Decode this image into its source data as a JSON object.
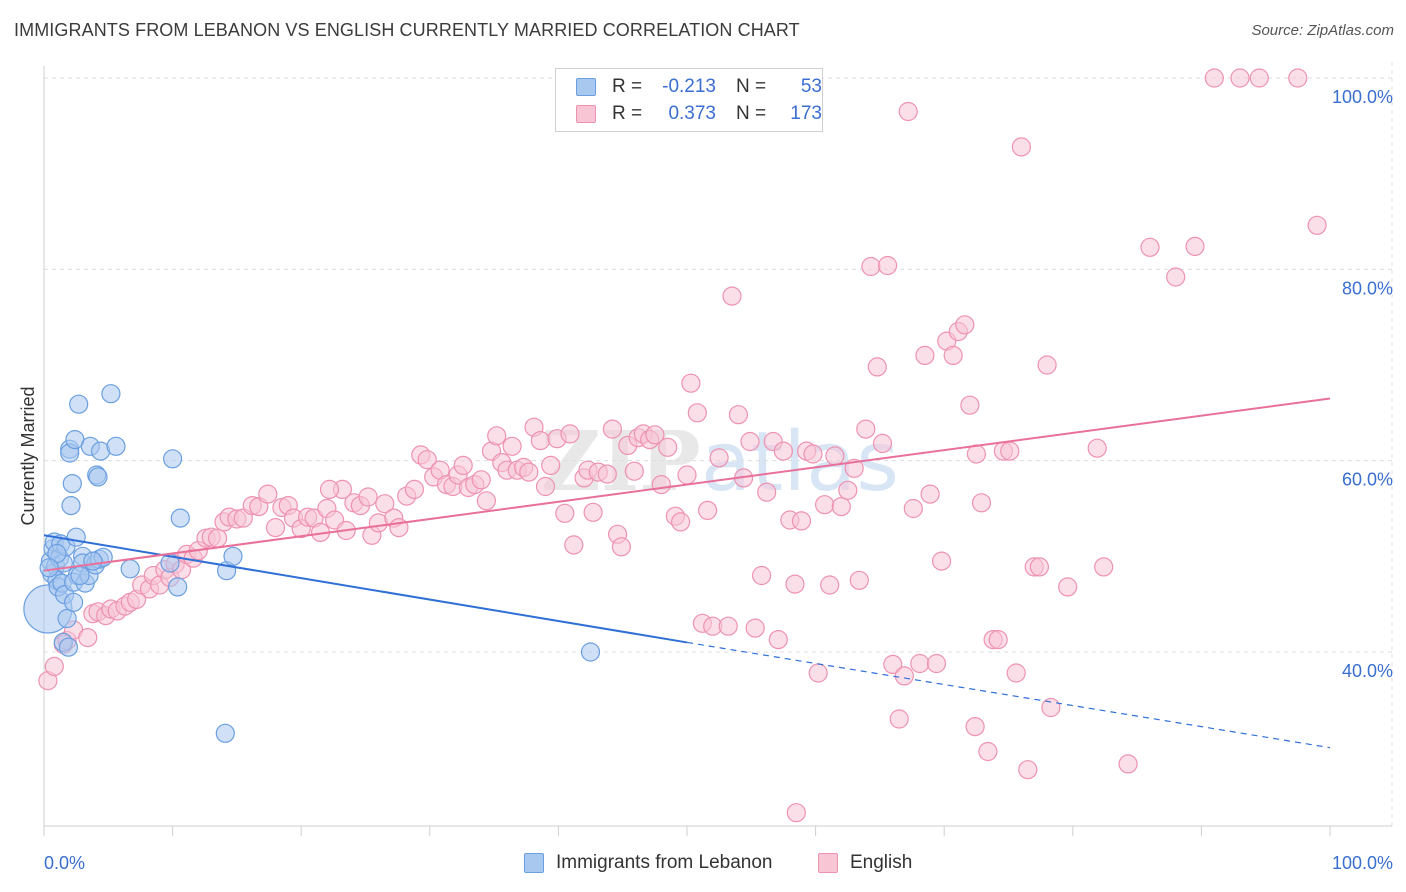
{
  "header": {
    "title": "IMMIGRANTS FROM LEBANON VS ENGLISH CURRENTLY MARRIED CORRELATION CHART",
    "source": "Source: ZipAtlas.com"
  },
  "watermark": "ZIPatlas",
  "legend_top": {
    "rows": [
      {
        "r_label": "R =",
        "r_value": "-0.213",
        "n_label": "N =",
        "n_value": "53",
        "color": "#7aaae6"
      },
      {
        "r_label": "R =",
        "r_value": "0.373",
        "n_label": "N =",
        "n_value": "173",
        "color": "#ef8fae"
      }
    ]
  },
  "legend_bottom": {
    "items": [
      {
        "label": "Immigrants from Lebanon",
        "color": "#7aaae6"
      },
      {
        "label": "English",
        "color": "#ef8fae"
      }
    ]
  },
  "colors": {
    "blue_fill": "#a9c8f0",
    "blue_stroke": "#6b9fe0",
    "blue_line": "#2f6fd6",
    "pink_fill": "#f8c5d5",
    "pink_stroke": "#ee92b1",
    "pink_line": "#e8709a",
    "grid": "#dddddd",
    "tick_label": "#3a6fd0"
  },
  "chart_data": {
    "type": "scatter",
    "title": "IMMIGRANTS FROM LEBANON VS ENGLISH CURRENTLY MARRIED CORRELATION CHART",
    "xlabel": "",
    "ylabel": "Currently Married",
    "xlim": [
      0,
      100
    ],
    "ylim": [
      20,
      102
    ],
    "x_tick_labels": [
      "0.0%",
      "100.0%"
    ],
    "y_ticks": [
      40,
      60,
      80,
      100
    ],
    "y_tick_labels": [
      "40.0%",
      "60.0%",
      "80.0%",
      "100.0%"
    ],
    "grid": true,
    "legend_position": "top-center and bottom",
    "series": [
      {
        "name": "Immigrants from Lebanon",
        "r": -0.213,
        "n": 53,
        "trend": {
          "x0": 0,
          "y0": 52.2,
          "x1": 50,
          "y1": 41.0,
          "dashed_to_x": 100,
          "dashed_to_y": 30.0
        },
        "points": [
          [
            0.3,
            44.5,
            3
          ],
          [
            0.5,
            49.5,
            1
          ],
          [
            0.6,
            48.2,
            1
          ],
          [
            0.7,
            50.8,
            1
          ],
          [
            0.8,
            51.5,
            1
          ],
          [
            0.9,
            49.0,
            1
          ],
          [
            1.0,
            47.5,
            1
          ],
          [
            1.1,
            46.8,
            1
          ],
          [
            1.2,
            49.8,
            1
          ],
          [
            1.3,
            51.3,
            1
          ],
          [
            1.4,
            47.2,
            1
          ],
          [
            1.5,
            49.3,
            1
          ],
          [
            1.6,
            46.0,
            1
          ],
          [
            1.7,
            51.0,
            1
          ],
          [
            1.8,
            43.5,
            1
          ],
          [
            1.5,
            41.0,
            1
          ],
          [
            1.9,
            40.5,
            1
          ],
          [
            2.0,
            61.2,
            1
          ],
          [
            2.0,
            60.8,
            1
          ],
          [
            2.1,
            55.3,
            1
          ],
          [
            2.2,
            57.6,
            1
          ],
          [
            2.3,
            45.2,
            1
          ],
          [
            2.4,
            62.2,
            1
          ],
          [
            2.5,
            52.0,
            1
          ],
          [
            2.6,
            48.0,
            1
          ],
          [
            2.3,
            47.3,
            1
          ],
          [
            2.7,
            65.9,
            1
          ],
          [
            3.0,
            50.0,
            1
          ],
          [
            3.2,
            47.2,
            1
          ],
          [
            3.0,
            49.3,
            1
          ],
          [
            3.5,
            48.0,
            1
          ],
          [
            3.6,
            61.5,
            1
          ],
          [
            4.0,
            49.1,
            1
          ],
          [
            4.1,
            58.5,
            1
          ],
          [
            4.2,
            58.3,
            1
          ],
          [
            4.4,
            61.0,
            1
          ],
          [
            4.3,
            49.7,
            1
          ],
          [
            4.6,
            49.9,
            1
          ],
          [
            5.2,
            67.0,
            1
          ],
          [
            5.6,
            61.5,
            1
          ],
          [
            6.7,
            48.7,
            1
          ],
          [
            9.8,
            49.3,
            1
          ],
          [
            10.0,
            60.2,
            1
          ],
          [
            10.4,
            46.8,
            1
          ],
          [
            10.6,
            54.0,
            1
          ],
          [
            14.2,
            48.5,
            1
          ],
          [
            14.7,
            50.0,
            1
          ],
          [
            14.1,
            31.5,
            1
          ],
          [
            42.5,
            40.0,
            1
          ],
          [
            1.0,
            50.3,
            1
          ],
          [
            0.4,
            48.8,
            1
          ],
          [
            2.8,
            48.0,
            1
          ],
          [
            3.8,
            49.5,
            1
          ]
        ]
      },
      {
        "name": "English",
        "r": 0.373,
        "n": 173,
        "trend": {
          "x0": 0,
          "y0": 48.5,
          "x1": 100,
          "y1": 66.5
        },
        "points": [
          [
            0.3,
            37.0,
            1
          ],
          [
            0.8,
            38.5,
            1
          ],
          [
            1.5,
            40.8,
            1
          ],
          [
            1.8,
            41.2,
            1
          ],
          [
            2.3,
            42.3,
            1
          ],
          [
            3.4,
            41.5,
            1
          ],
          [
            3.8,
            44.0,
            1
          ],
          [
            4.2,
            44.2,
            1
          ],
          [
            4.8,
            43.8,
            1
          ],
          [
            5.2,
            44.5,
            1
          ],
          [
            5.7,
            44.3,
            1
          ],
          [
            6.3,
            44.8,
            1
          ],
          [
            6.7,
            45.2,
            1
          ],
          [
            7.2,
            45.5,
            1
          ],
          [
            7.6,
            47.0,
            1
          ],
          [
            8.2,
            46.6,
            1
          ],
          [
            8.5,
            48.0,
            1
          ],
          [
            9.0,
            47.0,
            1
          ],
          [
            9.4,
            48.6,
            1
          ],
          [
            9.8,
            47.8,
            1
          ],
          [
            10.2,
            49.2,
            1
          ],
          [
            10.7,
            48.6,
            1
          ],
          [
            11.1,
            50.2,
            1
          ],
          [
            11.6,
            49.8,
            1
          ],
          [
            12.0,
            50.6,
            1
          ],
          [
            12.6,
            51.9,
            1
          ],
          [
            13.0,
            52.0,
            1
          ],
          [
            13.5,
            51.9,
            1
          ],
          [
            14.0,
            53.6,
            1
          ],
          [
            14.4,
            54.1,
            1
          ],
          [
            15.0,
            53.9,
            1
          ],
          [
            15.5,
            54.0,
            1
          ],
          [
            16.2,
            55.3,
            1
          ],
          [
            16.7,
            55.2,
            1
          ],
          [
            17.4,
            56.5,
            1
          ],
          [
            18.0,
            53.0,
            1
          ],
          [
            18.5,
            55.1,
            1
          ],
          [
            19.0,
            55.3,
            1
          ],
          [
            19.4,
            54.0,
            1
          ],
          [
            20.0,
            52.9,
            1
          ],
          [
            20.5,
            54.1,
            1
          ],
          [
            21.0,
            54.0,
            1
          ],
          [
            21.5,
            52.5,
            1
          ],
          [
            22.0,
            55.0,
            1
          ],
          [
            22.6,
            53.8,
            1
          ],
          [
            23.2,
            57.0,
            1
          ],
          [
            23.5,
            52.7,
            1
          ],
          [
            24.1,
            55.6,
            1
          ],
          [
            24.6,
            55.3,
            1
          ],
          [
            25.2,
            56.2,
            1
          ],
          [
            25.5,
            52.2,
            1
          ],
          [
            26.0,
            53.5,
            1
          ],
          [
            26.5,
            55.5,
            1
          ],
          [
            27.2,
            54.0,
            1
          ],
          [
            27.6,
            53.0,
            1
          ],
          [
            28.2,
            56.3,
            1
          ],
          [
            28.8,
            57.0,
            1
          ],
          [
            29.3,
            60.6,
            1
          ],
          [
            29.8,
            60.1,
            1
          ],
          [
            30.3,
            58.3,
            1
          ],
          [
            30.8,
            59.0,
            1
          ],
          [
            31.3,
            57.5,
            1
          ],
          [
            31.8,
            57.3,
            1
          ],
          [
            32.2,
            58.5,
            1
          ],
          [
            32.6,
            59.5,
            1
          ],
          [
            33.0,
            57.2,
            1
          ],
          [
            33.5,
            57.5,
            1
          ],
          [
            34.0,
            58.0,
            1
          ],
          [
            34.4,
            55.8,
            1
          ],
          [
            34.8,
            61.0,
            1
          ],
          [
            35.2,
            62.6,
            1
          ],
          [
            35.6,
            59.8,
            1
          ],
          [
            36.0,
            59.0,
            1
          ],
          [
            36.4,
            61.5,
            1
          ],
          [
            36.8,
            59.0,
            1
          ],
          [
            37.3,
            59.3,
            1
          ],
          [
            37.7,
            58.8,
            1
          ],
          [
            38.1,
            63.5,
            1
          ],
          [
            38.6,
            62.1,
            1
          ],
          [
            39.0,
            57.3,
            1
          ],
          [
            39.4,
            59.5,
            1
          ],
          [
            39.9,
            62.3,
            1
          ],
          [
            40.5,
            54.5,
            1
          ],
          [
            40.9,
            62.8,
            1
          ],
          [
            41.2,
            51.2,
            1
          ],
          [
            42.0,
            58.2,
            1
          ],
          [
            42.3,
            59.0,
            1
          ],
          [
            42.7,
            54.6,
            1
          ],
          [
            43.1,
            58.8,
            1
          ],
          [
            43.8,
            58.6,
            1
          ],
          [
            44.2,
            63.3,
            1
          ],
          [
            44.6,
            52.3,
            1
          ],
          [
            44.9,
            51.0,
            1
          ],
          [
            45.4,
            61.6,
            1
          ],
          [
            45.9,
            58.9,
            1
          ],
          [
            46.2,
            62.4,
            1
          ],
          [
            46.6,
            62.8,
            1
          ],
          [
            47.1,
            62.2,
            1
          ],
          [
            47.5,
            62.7,
            1
          ],
          [
            48.0,
            57.5,
            1
          ],
          [
            48.5,
            61.4,
            1
          ],
          [
            49.1,
            54.2,
            1
          ],
          [
            49.5,
            53.6,
            1
          ],
          [
            50.0,
            58.5,
            1
          ],
          [
            50.3,
            68.1,
            1
          ],
          [
            50.8,
            65.0,
            1
          ],
          [
            51.2,
            43.0,
            1
          ],
          [
            51.6,
            54.8,
            1
          ],
          [
            52.0,
            42.7,
            1
          ],
          [
            52.5,
            60.3,
            1
          ],
          [
            53.2,
            42.7,
            1
          ],
          [
            53.5,
            77.2,
            1
          ],
          [
            54.0,
            64.8,
            1
          ],
          [
            54.4,
            58.2,
            1
          ],
          [
            54.9,
            62.0,
            1
          ],
          [
            55.3,
            42.5,
            1
          ],
          [
            55.8,
            48.0,
            1
          ],
          [
            56.2,
            56.7,
            1
          ],
          [
            56.7,
            62.0,
            1
          ],
          [
            57.1,
            41.3,
            1
          ],
          [
            57.5,
            61.0,
            1
          ],
          [
            58.0,
            53.8,
            1
          ],
          [
            58.4,
            47.1,
            1
          ],
          [
            58.9,
            53.7,
            1
          ],
          [
            59.3,
            61.0,
            1
          ],
          [
            59.8,
            60.7,
            1
          ],
          [
            60.2,
            37.8,
            1
          ],
          [
            60.7,
            55.4,
            1
          ],
          [
            61.1,
            47.0,
            1
          ],
          [
            61.5,
            60.5,
            1
          ],
          [
            62.0,
            55.2,
            1
          ],
          [
            62.5,
            56.9,
            1
          ],
          [
            63.0,
            59.2,
            1
          ],
          [
            63.4,
            47.5,
            1
          ],
          [
            63.9,
            63.3,
            1
          ],
          [
            64.3,
            80.3,
            1
          ],
          [
            64.8,
            69.8,
            1
          ],
          [
            65.2,
            61.8,
            1
          ],
          [
            65.6,
            80.4,
            1
          ],
          [
            66.0,
            38.7,
            1
          ],
          [
            66.5,
            33.0,
            1
          ],
          [
            66.9,
            37.5,
            1
          ],
          [
            67.2,
            96.5,
            1
          ],
          [
            67.6,
            55.0,
            1
          ],
          [
            68.1,
            38.8,
            1
          ],
          [
            68.5,
            71.0,
            1
          ],
          [
            68.9,
            56.5,
            1
          ],
          [
            69.4,
            38.8,
            1
          ],
          [
            69.8,
            49.5,
            1
          ],
          [
            70.2,
            72.5,
            1
          ],
          [
            70.7,
            71.0,
            1
          ],
          [
            71.1,
            73.5,
            1
          ],
          [
            71.6,
            74.2,
            1
          ],
          [
            72.0,
            65.8,
            1
          ],
          [
            72.5,
            60.7,
            1
          ],
          [
            72.9,
            55.6,
            1
          ],
          [
            73.4,
            29.6,
            1
          ],
          [
            73.8,
            41.3,
            1
          ],
          [
            74.2,
            41.3,
            1
          ],
          [
            74.6,
            61.0,
            1
          ],
          [
            75.1,
            61.0,
            1
          ],
          [
            75.6,
            37.8,
            1
          ],
          [
            76.0,
            92.8,
            1
          ],
          [
            76.5,
            27.7,
            1
          ],
          [
            77.0,
            48.9,
            1
          ],
          [
            77.4,
            48.9,
            1
          ],
          [
            78.0,
            70.0,
            1
          ],
          [
            78.3,
            34.2,
            1
          ],
          [
            79.6,
            46.8,
            1
          ],
          [
            81.9,
            61.3,
            1
          ],
          [
            82.4,
            48.9,
            1
          ],
          [
            84.3,
            28.3,
            1
          ],
          [
            86.0,
            82.3,
            1
          ],
          [
            88.0,
            79.2,
            1
          ],
          [
            89.5,
            82.4,
            1
          ],
          [
            91.0,
            100.0,
            1
          ],
          [
            93.0,
            100.0,
            1
          ],
          [
            94.5,
            100.0,
            1
          ],
          [
            97.5,
            100.0,
            1
          ],
          [
            99.0,
            84.6,
            1
          ],
          [
            72.4,
            32.2,
            1
          ],
          [
            58.5,
            23.2,
            1
          ],
          [
            22.2,
            57.0,
            1
          ]
        ]
      }
    ]
  }
}
